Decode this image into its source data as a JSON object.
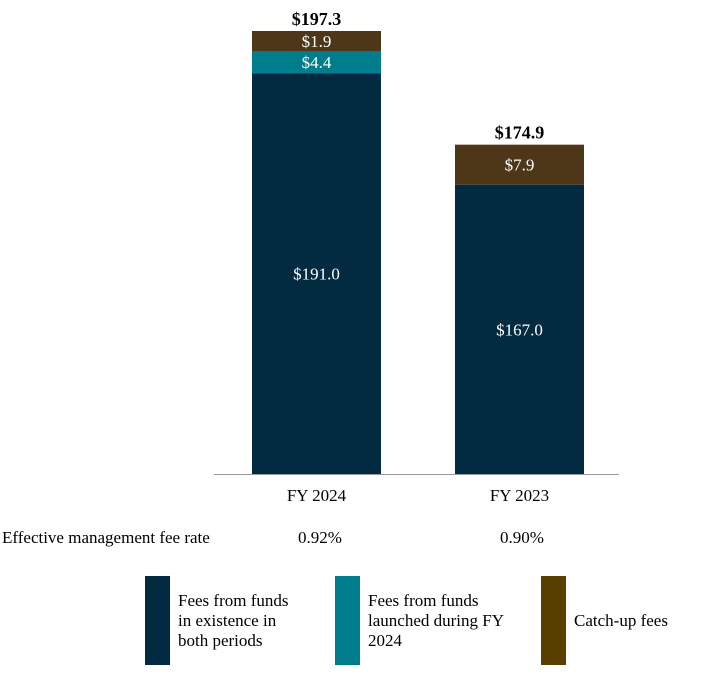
{
  "chart_data": {
    "type": "bar",
    "stacked": true,
    "categories": [
      "FY 2024",
      "FY 2023"
    ],
    "series": [
      {
        "name": "Fees from funds in existence in both periods",
        "color": "#022a40",
        "values": [
          191.0,
          167.0
        ],
        "labels": [
          "$191.0",
          "$167.0"
        ]
      },
      {
        "name": "Fees from funds launched during FY 2024",
        "color": "#007d8c",
        "values": [
          4.4,
          null
        ],
        "labels": [
          "$4.4",
          ""
        ]
      },
      {
        "name": "Catch-up fees",
        "color": "#4e3719",
        "values": [
          1.9,
          7.9
        ],
        "labels": [
          "$1.9",
          "$7.9"
        ]
      }
    ],
    "totals": [
      197.3,
      174.9
    ],
    "total_labels": [
      "$197.3",
      "$174.9"
    ],
    "legend_placement": "bottom",
    "legend_colors": [
      "#022a40",
      "#007d8c",
      "#5a4000"
    ],
    "grid": false
  },
  "fee_rate": {
    "label": "Effective management fee rate",
    "values": [
      "0.92%",
      "0.90%"
    ]
  },
  "legend": [
    {
      "label": "Fees from funds\nin existence in\nboth periods"
    },
    {
      "label": "Fees from funds\nlaunched during FY\n2024"
    },
    {
      "label": "Catch-up fees"
    }
  ]
}
